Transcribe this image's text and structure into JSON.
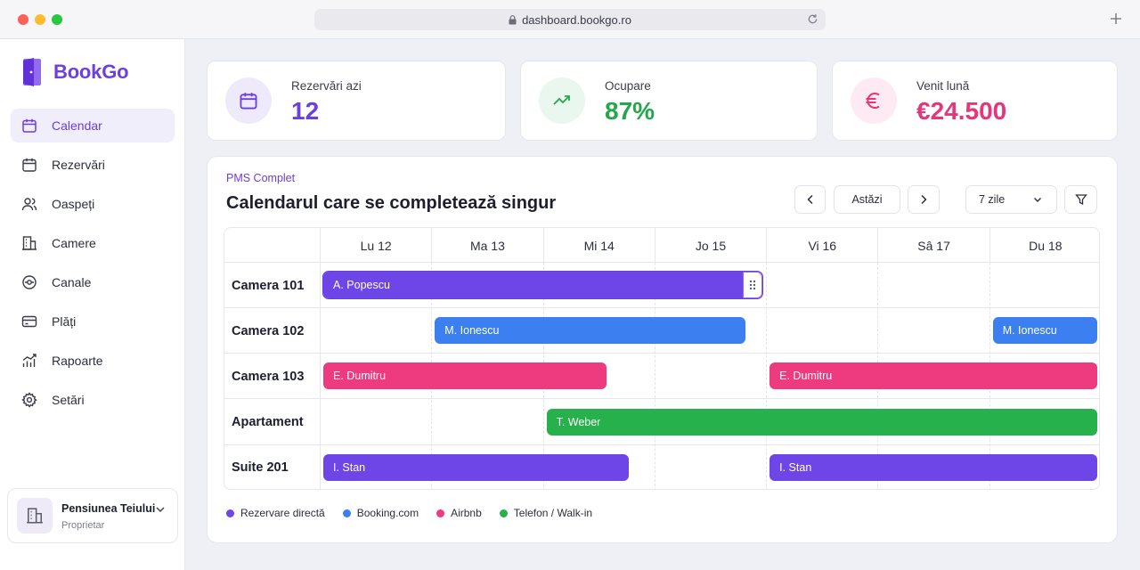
{
  "browser": {
    "url": "dashboard.bookgo.ro"
  },
  "app": {
    "name": "BookGo",
    "accent": "#6c3fe0"
  },
  "sidebar": {
    "items": [
      {
        "label": "Calendar",
        "icon": "calendar-icon",
        "active": true
      },
      {
        "label": "Rezervări",
        "icon": "calendar-icon"
      },
      {
        "label": "Oaspeți",
        "icon": "users-icon"
      },
      {
        "label": "Camere",
        "icon": "building-icon"
      },
      {
        "label": "Canale",
        "icon": "channels-icon"
      },
      {
        "label": "Plăți",
        "icon": "card-icon"
      },
      {
        "label": "Rapoarte",
        "icon": "chart-icon"
      },
      {
        "label": "Setări",
        "icon": "gear-icon"
      }
    ],
    "account": {
      "name": "Pensiunea Teiului",
      "role": "Proprietar"
    }
  },
  "stats": [
    {
      "label": "Rezervări azi",
      "value": "12",
      "color": "#6c3fe0",
      "icon": "calendar-icon"
    },
    {
      "label": "Ocupare",
      "value": "87%",
      "color": "#22a84a",
      "icon": "trend-up-icon"
    },
    {
      "label": "Venit lună",
      "value": "€24.500",
      "color": "#e8357a",
      "icon": "euro-icon"
    }
  ],
  "calendar": {
    "eyebrow": "PMS Complet",
    "title": "Calendarul care se completează singur",
    "today_label": "Astăzi",
    "range_label": "7 zile",
    "days": [
      "Lu 12",
      "Ma 13",
      "Mi 14",
      "Jo 15",
      "Vi 16",
      "Sâ 17",
      "Du 18"
    ],
    "rooms": [
      "Camera 101",
      "Camera 102",
      "Camera 103",
      "Apartament",
      "Suite 201"
    ],
    "bookings": [
      {
        "room": 0,
        "guest": "A. Popescu",
        "channel": 0,
        "start": 0,
        "end": 4,
        "selected": true
      },
      {
        "room": 1,
        "guest": "M. Ionescu",
        "channel": 1,
        "start": 1,
        "end": 3.85
      },
      {
        "room": 1,
        "guest": "M. Ionescu",
        "channel": 1,
        "start": 6,
        "end": 7
      },
      {
        "room": 2,
        "guest": "E. Dumitru",
        "channel": 2,
        "start": 0,
        "end": 2.6
      },
      {
        "room": 2,
        "guest": "E. Dumitru",
        "channel": 2,
        "start": 4,
        "end": 7
      },
      {
        "room": 3,
        "guest": "T. Weber",
        "channel": 3,
        "start": 2,
        "end": 7
      },
      {
        "room": 4,
        "guest": "I. Stan",
        "channel": 0,
        "start": 0,
        "end": 2.8
      },
      {
        "room": 4,
        "guest": "I. Stan",
        "channel": 0,
        "start": 4,
        "end": 7
      }
    ],
    "channels": [
      {
        "label": "Rezervare directă",
        "color": "#6e45e6"
      },
      {
        "label": "Booking.com",
        "color": "#3b7ff0"
      },
      {
        "label": "Airbnb",
        "color": "#ee3a7e"
      },
      {
        "label": "Telefon / Walk-in",
        "color": "#26b14d"
      }
    ]
  }
}
